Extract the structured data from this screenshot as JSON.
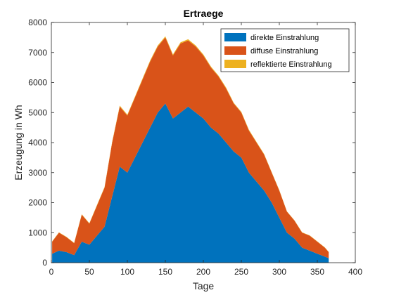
{
  "chart_data": {
    "type": "area",
    "stacked": true,
    "title": "Ertraege",
    "xlabel": "Tage",
    "ylabel": "Erzeugung in Wh",
    "xlim": [
      0,
      400
    ],
    "ylim": [
      0,
      8000
    ],
    "xticks": [
      "0",
      "50",
      "100",
      "150",
      "200",
      "250",
      "300",
      "350",
      "400"
    ],
    "yticks": [
      "0",
      "1000",
      "2000",
      "3000",
      "4000",
      "5000",
      "6000",
      "7000",
      "8000"
    ],
    "grid": false,
    "legend_position": "top-right",
    "x": [
      1,
      10,
      20,
      30,
      40,
      50,
      60,
      70,
      80,
      90,
      100,
      110,
      120,
      130,
      140,
      150,
      160,
      170,
      180,
      190,
      200,
      210,
      220,
      230,
      240,
      250,
      260,
      270,
      280,
      290,
      300,
      310,
      320,
      330,
      340,
      350,
      360,
      365
    ],
    "series": [
      {
        "name": "direkte Einstrahlung",
        "color": "#0072BD",
        "values": [
          300,
          400,
          350,
          250,
          700,
          600,
          900,
          1200,
          2200,
          3200,
          3000,
          3500,
          4000,
          4500,
          5000,
          5300,
          4800,
          5000,
          5200,
          5000,
          4800,
          4500,
          4300,
          4000,
          3700,
          3500,
          3000,
          2700,
          2400,
          2000,
          1500,
          1000,
          800,
          500,
          400,
          300,
          200,
          150
        ]
      },
      {
        "name": "diffuse Einstrahlung",
        "color": "#D95319",
        "values": [
          400,
          600,
          500,
          400,
          900,
          700,
          1000,
          1300,
          1800,
          2000,
          1900,
          2000,
          2100,
          2200,
          2200,
          2200,
          2100,
          2300,
          2200,
          2200,
          2100,
          2000,
          1900,
          1800,
          1600,
          1500,
          1400,
          1300,
          1200,
          1000,
          900,
          700,
          600,
          500,
          500,
          400,
          300,
          200
        ]
      },
      {
        "name": "reflektierte Einstrahlung",
        "color": "#EDB120",
        "values": [
          10,
          10,
          10,
          10,
          15,
          15,
          20,
          20,
          25,
          30,
          30,
          30,
          35,
          35,
          35,
          40,
          35,
          40,
          40,
          35,
          35,
          30,
          30,
          30,
          25,
          25,
          25,
          20,
          20,
          15,
          15,
          10,
          10,
          10,
          10,
          10,
          10,
          10
        ]
      }
    ]
  }
}
